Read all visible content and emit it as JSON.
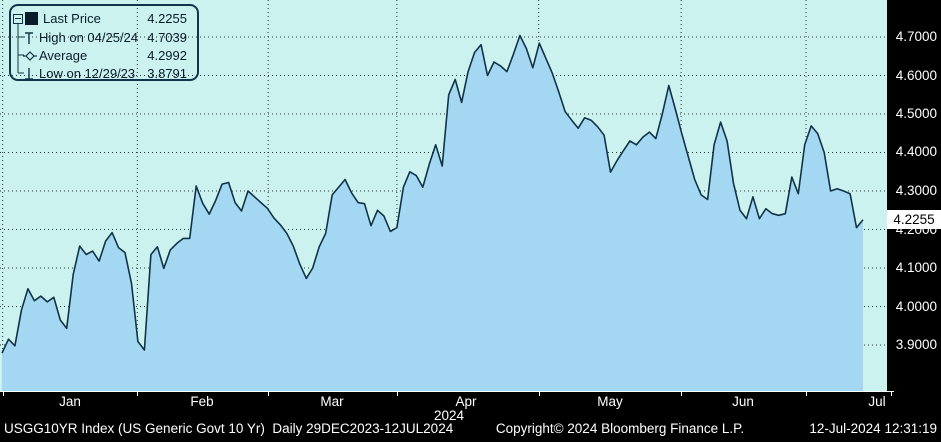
{
  "colors": {
    "plot_bg": "#CBF2EE",
    "area_fill": "#A3D7F2",
    "line": "#123347",
    "grid": "#2B3638",
    "panel_bg": "#000000",
    "panel_text": "#FFFFFF",
    "legend_text": "#081C2A",
    "last_price_box_bg": "#FFFFFF",
    "last_price_box_text": "#000000"
  },
  "legend": {
    "expander_icon": "minus-box",
    "rows": [
      {
        "icon": "series-swatch",
        "label": "Last Price",
        "value": "4.2255"
      },
      {
        "icon": "high-marker",
        "label": "High on 04/25/24",
        "value": "4.7039"
      },
      {
        "icon": "average-marker",
        "label": "Average",
        "value": "4.2992"
      },
      {
        "icon": "low-marker",
        "label": "Low on 12/29/23",
        "value": "3.8791"
      }
    ]
  },
  "y_axis": {
    "labels": [
      "4.7000",
      "4.6000",
      "4.5000",
      "4.4000",
      "4.3000",
      "4.2000",
      "4.1000",
      "4.0000",
      "3.9000"
    ],
    "values": [
      4.7,
      4.6,
      4.5,
      4.4,
      4.3,
      4.2,
      4.1,
      4.0,
      3.9
    ],
    "last_price_label": "4.2255"
  },
  "x_axis": {
    "month_labels": [
      "Jan",
      "Feb",
      "Mar",
      "Apr",
      "May",
      "Jun",
      "Jul"
    ],
    "year_label": "2024"
  },
  "footer": {
    "left": "USGG10YR Index (US Generic Govt 10 Yr)  Daily 29DEC2023-12JUL2024",
    "center": "Copyright© 2024 Bloomberg Finance L.P.",
    "right": "12-Jul-2024 12:31:19"
  },
  "chart_data": {
    "type": "area",
    "title": "USGG10YR Index (US Generic Govt 10 Yr)",
    "period": "Daily 29DEC2023-12JUL2024",
    "x_unit": "consecutive US trading days from 29DEC2023 to 12JUL2024",
    "n_points": 134,
    "values": [
      3.879,
      3.915,
      3.898,
      3.99,
      4.046,
      4.015,
      4.027,
      4.012,
      4.024,
      3.965,
      3.943,
      4.083,
      4.157,
      4.135,
      4.144,
      4.118,
      4.17,
      4.192,
      4.153,
      4.14,
      4.06,
      3.909,
      3.887,
      4.135,
      4.155,
      4.099,
      4.147,
      4.164,
      4.177,
      4.177,
      4.313,
      4.268,
      4.24,
      4.275,
      4.318,
      4.322,
      4.27,
      4.248,
      4.3,
      4.285,
      4.27,
      4.255,
      4.23,
      4.212,
      4.19,
      4.157,
      4.11,
      4.073,
      4.1,
      4.155,
      4.19,
      4.29,
      4.31,
      4.33,
      4.295,
      4.27,
      4.267,
      4.21,
      4.25,
      4.235,
      4.195,
      4.205,
      4.31,
      4.35,
      4.34,
      4.31,
      4.37,
      4.42,
      4.365,
      4.55,
      4.59,
      4.53,
      4.61,
      4.66,
      4.68,
      4.6,
      4.635,
      4.625,
      4.61,
      4.655,
      4.7039,
      4.67,
      4.62,
      4.684,
      4.645,
      4.606,
      4.558,
      4.506,
      4.484,
      4.463,
      4.49,
      4.484,
      4.467,
      4.445,
      4.349,
      4.379,
      4.405,
      4.43,
      4.42,
      4.44,
      4.453,
      4.436,
      4.5,
      4.574,
      4.513,
      4.45,
      4.39,
      4.33,
      4.29,
      4.278,
      4.42,
      4.479,
      4.43,
      4.32,
      4.25,
      4.228,
      4.285,
      4.228,
      4.254,
      4.241,
      4.237,
      4.241,
      4.336,
      4.293,
      4.42,
      4.469,
      4.449,
      4.4,
      4.3,
      4.306,
      4.3,
      4.293,
      4.205,
      4.2255
    ],
    "stats": {
      "last_price": 4.2255,
      "high": 4.7039,
      "high_date": "04/25/24",
      "average": 4.2992,
      "low": 3.8791,
      "low_date": "12/29/23"
    },
    "y_axis": {
      "tick_values": [
        3.9,
        4.0,
        4.1,
        4.2,
        4.3,
        4.4,
        4.5,
        4.6,
        4.7
      ],
      "grid": "dotted"
    },
    "x_axis": {
      "month_labels": [
        "Jan",
        "Feb",
        "Mar",
        "Apr",
        "May",
        "Jun",
        "Jul"
      ],
      "year": "2024",
      "month_gridline_point_idx": [
        0.1,
        20.9,
        41.1,
        61.0,
        82.9,
        104.9,
        124.2
      ],
      "month_label_point_idx": [
        10.5,
        30.9,
        51.0,
        71.7,
        93.9,
        114.5,
        135.2
      ]
    },
    "legend_position": "top-left"
  }
}
